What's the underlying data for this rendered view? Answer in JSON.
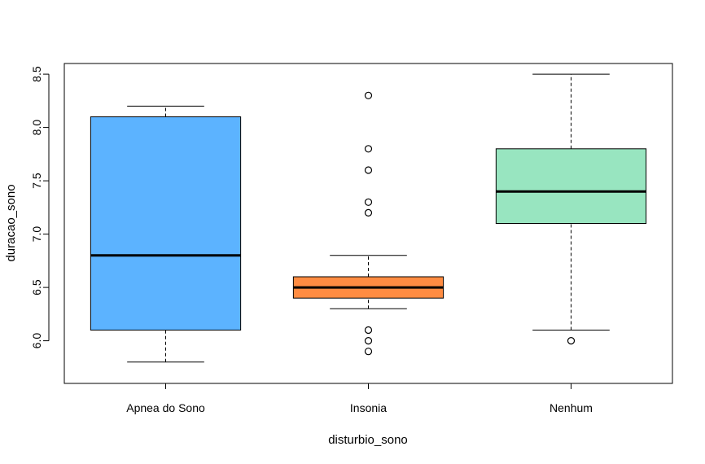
{
  "chart_data": {
    "type": "boxplot",
    "title": "",
    "xlabel": "disturbio_sono",
    "ylabel": "duracao_sono",
    "ylim": [
      5.7,
      8.6
    ],
    "yticks": [
      "6.0",
      "6.5",
      "7.0",
      "7.5",
      "8.0",
      "8.5"
    ],
    "grid": false,
    "categories": [
      "Apnea do Sono",
      "Insonia",
      "Nenhum"
    ],
    "groups": [
      {
        "category": "Apnea do Sono",
        "color": "#5CB3FF",
        "whisker_low": 5.8,
        "q1": 6.1,
        "median": 6.8,
        "q3": 8.1,
        "whisker_high": 8.2,
        "outliers": []
      },
      {
        "category": "Insonia",
        "color": "#FF8C42",
        "whisker_low": 6.3,
        "q1": 6.4,
        "median": 6.5,
        "q3": 6.6,
        "whisker_high": 6.8,
        "outliers": [
          5.9,
          6.0,
          6.1,
          7.2,
          7.3,
          7.6,
          7.8,
          8.3
        ]
      },
      {
        "category": "Nenhum",
        "color": "#98E5C0",
        "whisker_low": 6.1,
        "q1": 7.1,
        "median": 7.4,
        "q3": 7.8,
        "whisker_high": 8.5,
        "outliers": [
          6.0
        ]
      }
    ]
  }
}
